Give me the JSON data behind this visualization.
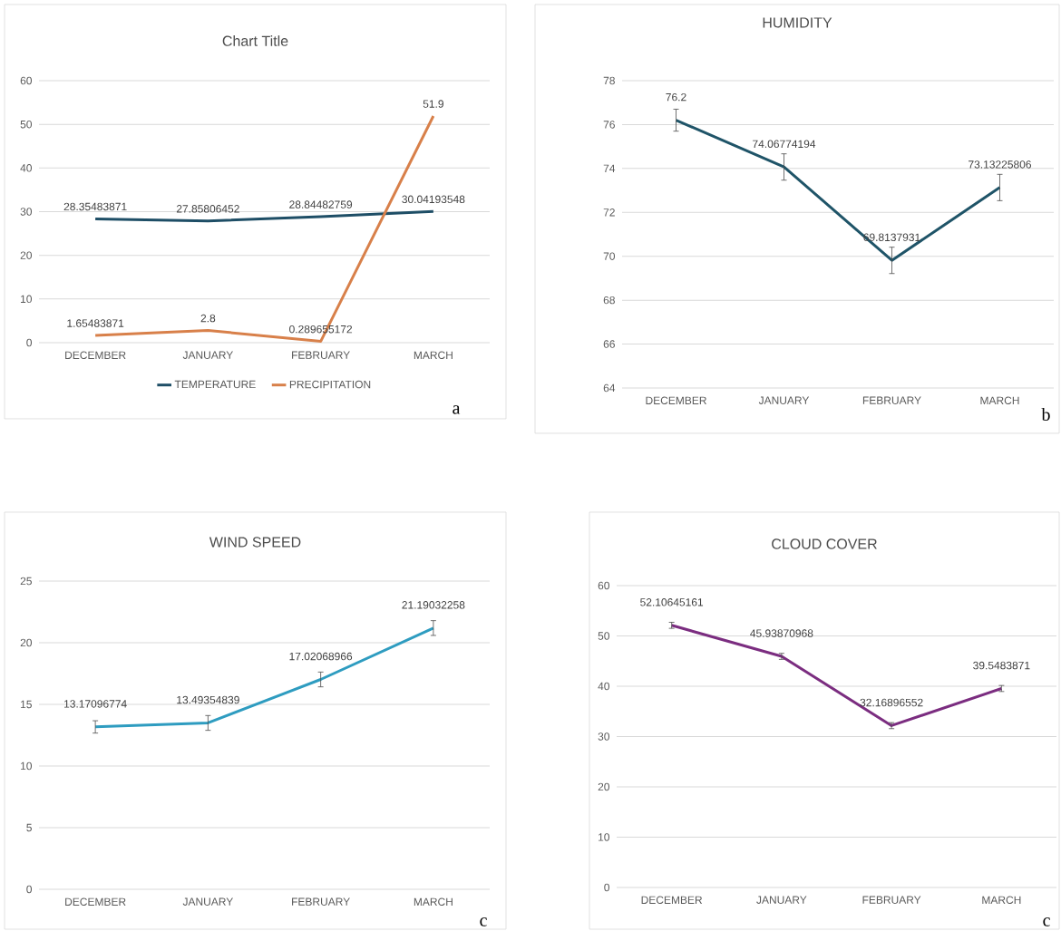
{
  "chart_data": [
    {
      "type": "line",
      "title": "Chart Title",
      "categories": [
        "DECEMBER",
        "JANUARY",
        "FEBRUARY",
        "MARCH"
      ],
      "series": [
        {
          "name": "TEMPERATURE",
          "color": "#1e4e66",
          "values": [
            28.35483871,
            27.85806452,
            28.84482759,
            30.04193548
          ]
        },
        {
          "name": "PRECIPITATION",
          "color": "#d8804a",
          "values": [
            1.65483871,
            2.8,
            0.289655172,
            51.9
          ]
        }
      ],
      "ylim": [
        0,
        60
      ],
      "yticks": [
        0,
        10,
        20,
        30,
        40,
        50,
        60
      ],
      "grid": "y",
      "data_labels": true,
      "legend": "bottom",
      "annotations": [
        "a"
      ]
    },
    {
      "type": "line",
      "title": "HUMIDITY",
      "categories": [
        "DECEMBER",
        "JANUARY",
        "FEBRUARY",
        "MARCH"
      ],
      "series": [
        {
          "color": "#1f5468",
          "values": [
            76.2,
            74.06774194,
            69.8137931,
            73.13225806
          ],
          "errors": [
            0.5,
            0.6,
            0.6,
            0.6
          ]
        }
      ],
      "ylim": [
        64,
        78
      ],
      "yticks": [
        64,
        66,
        68,
        70,
        72,
        74,
        76,
        78
      ],
      "grid": "y",
      "data_labels": true,
      "annotations": [
        "b"
      ]
    },
    {
      "type": "line",
      "title": "WIND SPEED",
      "categories": [
        "DECEMBER",
        "JANUARY",
        "FEBRUARY",
        "MARCH"
      ],
      "series": [
        {
          "color": "#2e9cc0",
          "values": [
            13.17096774,
            13.49354839,
            17.02068966,
            21.19032258
          ],
          "errors": [
            0.5,
            0.6,
            0.6,
            0.6
          ]
        }
      ],
      "ylim": [
        0,
        25
      ],
      "yticks": [
        0,
        5,
        10,
        15,
        20,
        25
      ],
      "grid": "y",
      "data_labels": true,
      "annotations": [
        "c"
      ]
    },
    {
      "type": "line",
      "title": "CLOUD COVER",
      "categories": [
        "DECEMBER",
        "JANUARY",
        "FEBRUARY",
        "MARCH"
      ],
      "series": [
        {
          "color": "#7b2d80",
          "values": [
            52.10645161,
            45.93870968,
            32.16896552,
            39.5483871
          ],
          "errors": [
            0.6,
            0.6,
            0.6,
            0.6
          ]
        }
      ],
      "ylim": [
        0,
        60
      ],
      "yticks": [
        0,
        10,
        20,
        30,
        40,
        50,
        60
      ],
      "grid": "y",
      "data_labels": true,
      "annotations": [
        "c"
      ]
    }
  ]
}
